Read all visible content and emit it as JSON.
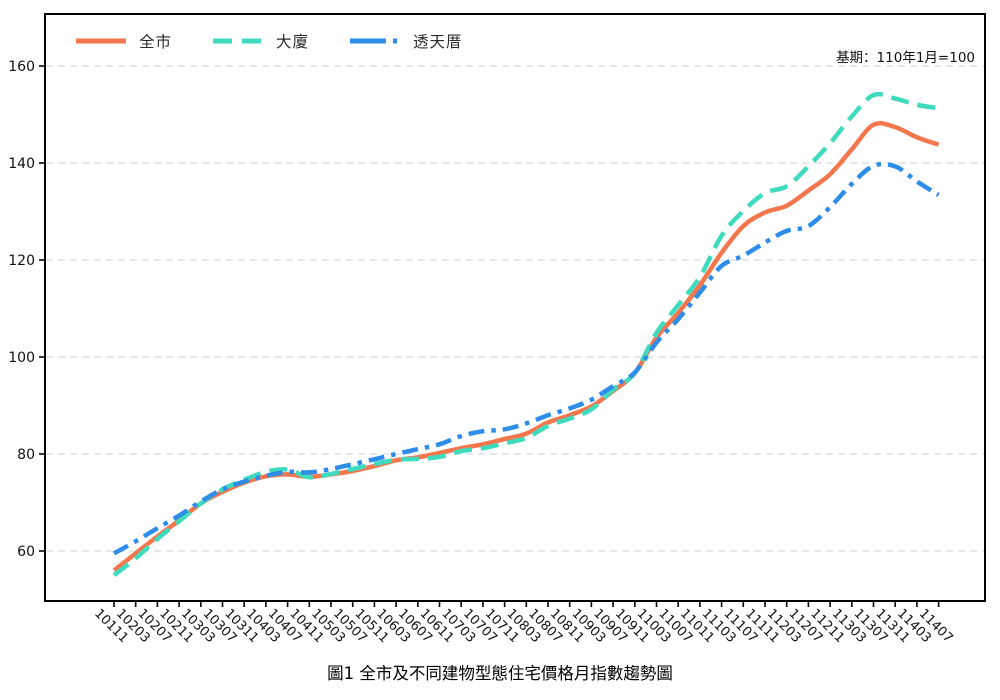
{
  "annotation": {
    "text": "基期：110年1月=100"
  },
  "colors": {
    "citywide": "#F4764D",
    "apartment": "#3EDBBE",
    "townhouse": "#2D8DE8",
    "gridline": "#d8dde2",
    "axis": "#000000"
  },
  "chart_data": {
    "type": "line",
    "title": "圖1 全市及不同建物型態住宅價格月指數趨勢圖",
    "xlabel": "",
    "ylabel": "",
    "ylim": [
      50,
      170
    ],
    "grid": "horizontal-dashed",
    "legend_position": "top-left-inside-horizontal",
    "base_note": "基期：110年1月=100",
    "y_ticks": [
      60,
      80,
      100,
      120,
      140,
      160
    ],
    "x_labels": [
      "10111",
      "10203",
      "10207",
      "10211",
      "10303",
      "10307",
      "10311",
      "10403",
      "10407",
      "10411",
      "10503",
      "10507",
      "10511",
      "10603",
      "10607",
      "10611",
      "10703",
      "10707",
      "10711",
      "10803",
      "10807",
      "10811",
      "10903",
      "10907",
      "10911",
      "11003",
      "11007",
      "11011",
      "11103",
      "11107",
      "11111",
      "11203",
      "11207",
      "11211",
      "11303",
      "11307",
      "11311",
      "11403",
      "11407"
    ],
    "series": [
      {
        "name": "全市",
        "color": "#F4764D",
        "style": "solid",
        "values": [
          56.0,
          59.5,
          63.0,
          66.3,
          69.8,
          72.2,
          74.1,
          75.4,
          75.8,
          75.3,
          75.8,
          76.5,
          77.5,
          78.7,
          79.3,
          80.2,
          81.2,
          82.0,
          83.1,
          84.2,
          86.5,
          88.0,
          89.8,
          93.0,
          96.7,
          104.0,
          109.1,
          114.8,
          121.5,
          127.0,
          129.8,
          131.2,
          134.3,
          137.7,
          142.8,
          147.9,
          147.4,
          145.3,
          143.8
        ]
      },
      {
        "name": "大廈",
        "color": "#3EDBBE",
        "style": "dashed",
        "values": [
          55.0,
          58.5,
          62.5,
          66.1,
          69.8,
          72.7,
          74.7,
          76.3,
          76.8,
          75.2,
          75.9,
          76.9,
          77.9,
          78.8,
          79.0,
          79.4,
          80.6,
          81.2,
          82.2,
          83.3,
          85.8,
          87.3,
          89.2,
          93.3,
          96.7,
          105.0,
          110.7,
          116.5,
          125.0,
          130.1,
          133.8,
          135.2,
          139.3,
          144.1,
          149.6,
          154.0,
          153.3,
          152.0,
          151.3
        ]
      },
      {
        "name": "透天厝",
        "color": "#2D8DE8",
        "style": "dash-dot",
        "values": [
          59.5,
          62.0,
          64.7,
          67.3,
          70.2,
          72.7,
          74.3,
          75.5,
          76.3,
          76.2,
          76.9,
          77.9,
          78.9,
          80.0,
          81.0,
          82.0,
          83.7,
          84.7,
          85.1,
          86.3,
          88.0,
          89.4,
          91.2,
          94.0,
          96.8,
          103.0,
          107.8,
          113.3,
          118.8,
          120.9,
          123.6,
          126.0,
          127.0,
          130.9,
          135.7,
          139.4,
          139.3,
          136.2,
          133.4
        ]
      }
    ]
  }
}
